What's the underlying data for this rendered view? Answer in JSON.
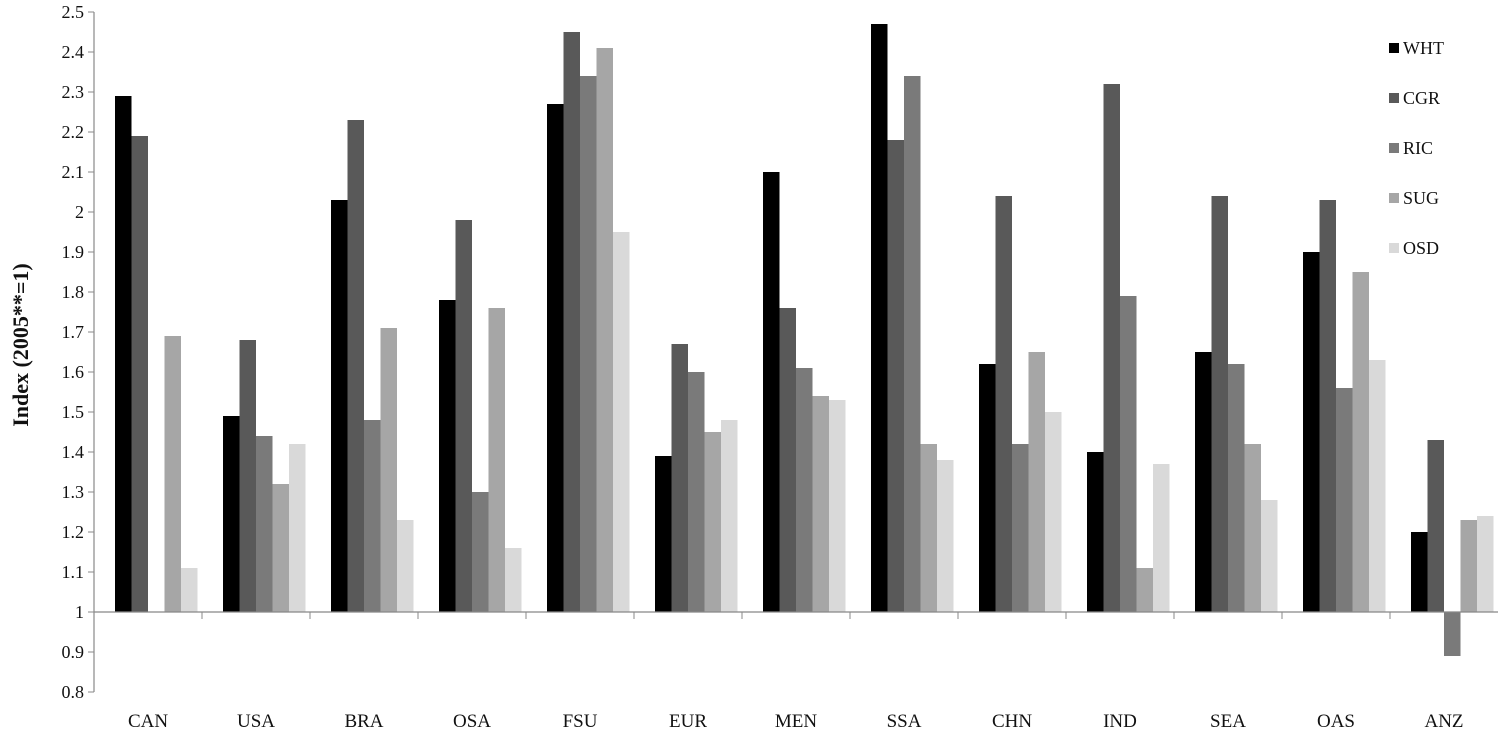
{
  "chart_data": {
    "type": "bar",
    "title": "",
    "xlabel": "",
    "ylabel": "Index  (2005**=1)",
    "ylim": [
      0.8,
      2.5
    ],
    "yticks": [
      "0.8",
      "0.9",
      "1",
      "1.1",
      "1.2",
      "1.3",
      "1.4",
      "1.5",
      "1.6",
      "1.7",
      "1.8",
      "1.9",
      "2",
      "2.1",
      "2.2",
      "2.3",
      "2.4",
      "2.5"
    ],
    "baseline": 1,
    "grid": false,
    "legend_position": "right",
    "categories": [
      "CAN",
      "USA",
      "BRA",
      "OSA",
      "FSU",
      "EUR",
      "MEN",
      "SSA",
      "CHN",
      "IND",
      "SEA",
      "OAS",
      "ANZ"
    ],
    "series": [
      {
        "name": "WHT",
        "color": "#000000",
        "values": [
          2.29,
          1.49,
          2.03,
          1.78,
          2.27,
          1.39,
          2.1,
          2.47,
          1.62,
          1.4,
          1.65,
          1.9,
          1.2
        ]
      },
      {
        "name": "CGR",
        "color": "#595959",
        "values": [
          2.19,
          1.68,
          2.23,
          1.98,
          2.45,
          1.67,
          1.76,
          2.18,
          2.04,
          2.32,
          2.04,
          2.03,
          1.43
        ]
      },
      {
        "name": "RIC",
        "color": "#7a7a7a",
        "values": [
          null,
          1.44,
          1.48,
          1.3,
          2.34,
          1.6,
          1.61,
          2.34,
          1.42,
          1.79,
          1.62,
          1.56,
          0.89
        ]
      },
      {
        "name": "SUG",
        "color": "#a6a6a6",
        "values": [
          1.69,
          1.32,
          1.71,
          1.76,
          2.41,
          1.45,
          1.54,
          1.42,
          1.65,
          1.11,
          1.42,
          1.85,
          1.23
        ]
      },
      {
        "name": "OSD",
        "color": "#d9d9d9",
        "values": [
          1.11,
          1.42,
          1.23,
          1.16,
          1.95,
          1.48,
          1.53,
          1.38,
          1.5,
          1.37,
          1.28,
          1.63,
          1.24
        ]
      }
    ]
  }
}
